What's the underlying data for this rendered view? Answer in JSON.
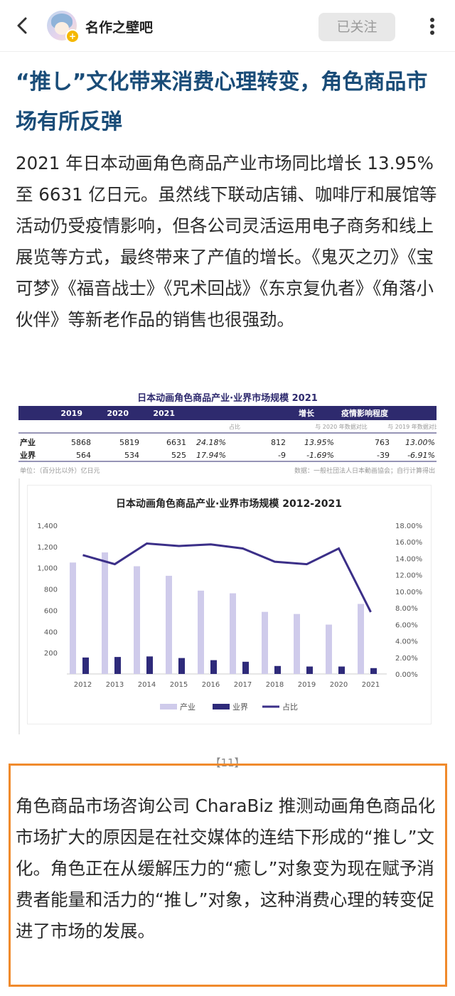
{
  "header": {
    "forum_name": "名作之壁吧",
    "follow_label": "已关注",
    "back_icon": "chevron-left-icon",
    "more_icon": "more-vertical-icon"
  },
  "article": {
    "title": "“推し”文化带来消费心理转变，角色商品市场有所反弹",
    "paragraph1": "2021 年日本动画角色商品产业市场同比增长 13.95% 至 6631 亿日元。虽然线下联动店铺、咖啡厅和展馆等活动仍受疫情影响，但各公司灵活运用电子商务和线上展览等方式，最终带来了产值的增长。《鬼灭之刃》《宝可梦》《福音战士》《咒术回战》《东京复仇者》《角落小伙伴》等新老作品的销售也很强劲。",
    "image_caption": "【11】",
    "paragraph2": "角色商品市场咨询公司 CharaBiz 推测动画角色商品化市场扩大的原因是在社交媒体的连结下形成的“推し”文化。角色正在从缓解压力的“癒し”对象变为现在赋予消费者能量和活力的“推し”对象，这种消费心理的转变促进了市场的发展。"
  },
  "table": {
    "title": "日本动画角色商品产业·业界市场规模 2021",
    "headers": [
      "",
      "2019",
      "2020",
      "2021",
      "",
      "增长",
      "",
      "疫情影响程度",
      ""
    ],
    "subheaders": [
      "",
      "",
      "",
      "",
      "占比",
      "与 2020 年数据对比",
      "",
      "与 2019 年数据对比",
      ""
    ],
    "rows": [
      [
        "产业",
        "5868",
        "5819",
        "6631",
        "24.18%",
        "812",
        "13.95%",
        "763",
        "13.00%"
      ],
      [
        "业界",
        "564",
        "534",
        "525",
        "17.94%",
        "-9",
        "-1.69%",
        "-39",
        "-6.91%"
      ]
    ],
    "unit_note": "单位：（百分比以外）亿日元",
    "source_note": "数据：一般社団法人日本動画協会；自行计算得出",
    "header_color": "#2e2a6e"
  },
  "chart_data": {
    "type": "bar",
    "title": "日本动画角色商品产业·业界市场规模 2012-2021",
    "categories": [
      "2012",
      "2013",
      "2014",
      "2015",
      "2016",
      "2017",
      "2018",
      "2019",
      "2020",
      "2021"
    ],
    "series": [
      {
        "name": "产业",
        "type": "bar",
        "axis": "left",
        "color": "#cfcbeb",
        "values": [
          1050,
          1145,
          1015,
          925,
          785,
          760,
          585,
          565,
          465,
          660
        ]
      },
      {
        "name": "业界",
        "type": "bar",
        "axis": "left",
        "color": "#2e2a7a",
        "values": [
          155,
          160,
          165,
          150,
          130,
          115,
          75,
          70,
          70,
          55
        ]
      },
      {
        "name": "占比",
        "type": "line",
        "axis": "right",
        "color": "#3b2f88",
        "values": [
          14.4,
          13.3,
          15.8,
          15.5,
          15.7,
          15.2,
          13.6,
          13.3,
          15.2,
          7.5
        ]
      }
    ],
    "yleft_ticks": [
      "",
      "200",
      "400",
      "600",
      "800",
      "1,000",
      "1,200",
      "1,400"
    ],
    "yleft_lim": [
      0,
      1400
    ],
    "yright_ticks": [
      "0.00%",
      "2.00%",
      "4.00%",
      "6.00%",
      "8.00%",
      "10.00%",
      "12.00%",
      "14.00%",
      "16.00%",
      "18.00%"
    ],
    "yright_lim": [
      0,
      18
    ],
    "legend_position": "bottom"
  }
}
